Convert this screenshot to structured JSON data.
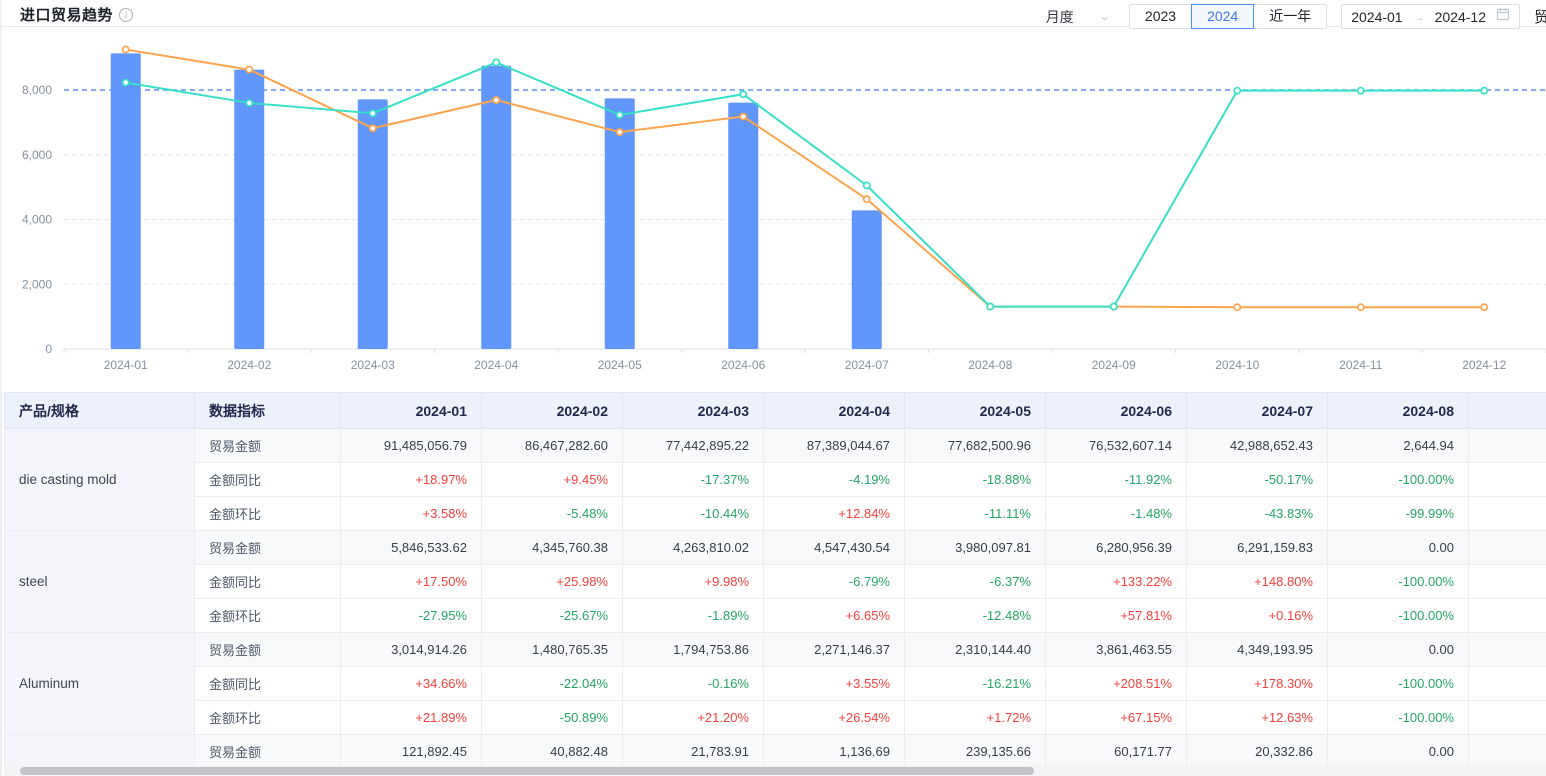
{
  "header": {
    "title": "进口贸易趋势",
    "controls": {
      "frequency": "月度",
      "year_buttons": [
        "2023",
        "2024",
        "近一年"
      ],
      "selected_year": "2024",
      "date_start": "2024-01",
      "date_end": "2024-12",
      "trailing_label": "贸易"
    }
  },
  "chart_data": {
    "type": "bar",
    "subtype": "bar+line combo",
    "categories": [
      "2024-01",
      "2024-02",
      "2024-03",
      "2024-04",
      "2024-05",
      "2024-06",
      "2024-07",
      "2024-08",
      "2024-09",
      "2024-10",
      "2024-11",
      "2024-12"
    ],
    "series": [
      {
        "name": "trade-amount-bar",
        "type": "bar",
        "color": "#6196FA",
        "values": [
          9130,
          8630,
          7710,
          8750,
          7740,
          7610,
          4280,
          null,
          null,
          null,
          null,
          null
        ]
      },
      {
        "name": "line-orange",
        "type": "line",
        "color": "#FFA44D",
        "values": [
          9250,
          8630,
          6820,
          7690,
          6700,
          7180,
          4630,
          1310,
          1310,
          1290,
          1290,
          1290
        ]
      },
      {
        "name": "line-teal",
        "type": "line",
        "color": "#35E0C6",
        "values": [
          8230,
          7600,
          7280,
          8850,
          7230,
          7870,
          5050,
          1310,
          1310,
          7980,
          7980,
          7980
        ]
      }
    ],
    "yticks": [
      0,
      2000,
      4000,
      6000,
      8000
    ],
    "ytick_labels": [
      "0",
      "2,000",
      "4,000",
      "6,000",
      "8,000"
    ],
    "ylim": [
      0,
      9600
    ],
    "refline": {
      "value": 8000,
      "color": "#5E8FF5",
      "style": "dashed"
    },
    "grid": true,
    "legend_position": "none",
    "title": "",
    "xlabel": "",
    "ylabel": ""
  },
  "table": {
    "col1_header": "产品/规格",
    "col2_header": "数据指标",
    "month_headers": [
      "2024-01",
      "2024-02",
      "2024-03",
      "2024-04",
      "2024-05",
      "2024-06",
      "2024-07",
      "2024-08"
    ],
    "metric_labels": [
      "贸易金额",
      "金额同比",
      "金额环比"
    ],
    "products": [
      {
        "name": "die casting mold",
        "rows": [
          [
            "91,485,056.79",
            "86,467,282.60",
            "77,442,895.22",
            "87,389,044.67",
            "77,682,500.96",
            "76,532,607.14",
            "42,988,652.43",
            "2,644.94"
          ],
          [
            "+18.97%",
            "+9.45%",
            "-17.37%",
            "-4.19%",
            "-18.88%",
            "-11.92%",
            "-50.17%",
            "-100.00%"
          ],
          [
            "+3.58%",
            "-5.48%",
            "-10.44%",
            "+12.84%",
            "-11.11%",
            "-1.48%",
            "-43.83%",
            "-99.99%"
          ]
        ]
      },
      {
        "name": "steel",
        "rows": [
          [
            "5,846,533.62",
            "4,345,760.38",
            "4,263,810.02",
            "4,547,430.54",
            "3,980,097.81",
            "6,280,956.39",
            "6,291,159.83",
            "0.00"
          ],
          [
            "+17.50%",
            "+25.98%",
            "+9.98%",
            "-6.79%",
            "-6.37%",
            "+133.22%",
            "+148.80%",
            "-100.00%"
          ],
          [
            "-27.95%",
            "-25.67%",
            "-1.89%",
            "+6.65%",
            "-12.48%",
            "+57.81%",
            "+0.16%",
            "-100.00%"
          ]
        ]
      },
      {
        "name": "Aluminum",
        "rows": [
          [
            "3,014,914.26",
            "1,480,765.35",
            "1,794,753.86",
            "2,271,146.37",
            "2,310,144.40",
            "3,861,463.55",
            "4,349,193.95",
            "0.00"
          ],
          [
            "+34.66%",
            "-22.04%",
            "-0.16%",
            "+3.55%",
            "-16.21%",
            "+208.51%",
            "+178.30%",
            "-100.00%"
          ],
          [
            "+21.89%",
            "-50.89%",
            "+21.20%",
            "+26.54%",
            "+1.72%",
            "+67.15%",
            "+12.63%",
            "-100.00%"
          ]
        ]
      },
      {
        "name": "",
        "rows": [
          [
            "121,892.45",
            "40,882.48",
            "21,783.91",
            "1,136.69",
            "239,135.66",
            "60,171.77",
            "20,332.86",
            "0.00"
          ]
        ]
      }
    ]
  },
  "colors": {
    "bar": "#6196FA",
    "line_orange": "#FFA44D",
    "line_teal": "#35E0C6",
    "refline": "#5E8FF5",
    "grid": "#E5E6EB",
    "axis_text": "#86909C",
    "positive_red": "#F5413D",
    "negative_green": "#23A666",
    "header_bg": "#EDF1FA",
    "accent_blue": "#3D77E8"
  }
}
